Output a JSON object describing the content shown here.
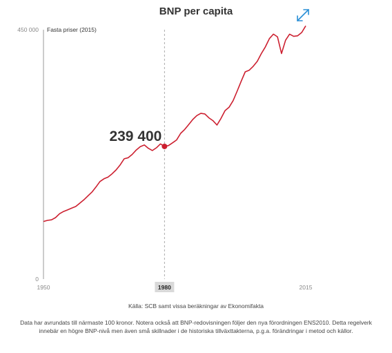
{
  "header": {
    "title": "BNP per capita",
    "expand_icon": "expand-arrows-icon"
  },
  "colors": {
    "line": "#cc1f2f",
    "axis": "#999999",
    "highlight_bg": "#d9d9d9",
    "expand_icon": "#2a8fd6"
  },
  "chart_data": {
    "type": "line",
    "title": "BNP per capita",
    "subtitle": "Fasta priser (2015)",
    "xlabel": "",
    "ylabel": "",
    "xlim": [
      1950,
      2015
    ],
    "ylim": [
      0,
      450000
    ],
    "y_tick_labels": [
      "0",
      "450 000"
    ],
    "y_ticks": [
      0,
      450000
    ],
    "x_tick_labels": [
      "1950",
      "1980",
      "2015"
    ],
    "x_ticks": [
      1950,
      1980,
      2015
    ],
    "grid": false,
    "highlight": {
      "x": 1980,
      "y": 239400,
      "label": "239 400",
      "x_label": "1980"
    },
    "series": [
      {
        "x": [
          1950,
          1951,
          1952,
          1953,
          1954,
          1955,
          1956,
          1957,
          1958,
          1959,
          1960,
          1961,
          1962,
          1963,
          1964,
          1965,
          1966,
          1967,
          1968,
          1969,
          1970,
          1971,
          1972,
          1973,
          1974,
          1975,
          1976,
          1977,
          1978,
          1979,
          1980,
          1981,
          1982,
          1983,
          1984,
          1985,
          1986,
          1987,
          1988,
          1989,
          1990,
          1991,
          1992,
          1993,
          1994,
          1995,
          1996,
          1997,
          1998,
          1999,
          2000,
          2001,
          2002,
          2003,
          2004,
          2005,
          2006,
          2007,
          2008,
          2009,
          2010,
          2011,
          2012,
          2013,
          2014,
          2015
        ],
        "values": [
          104000,
          106000,
          107000,
          111000,
          118000,
          122000,
          125000,
          128000,
          131000,
          137000,
          143000,
          150000,
          157000,
          166000,
          176000,
          181000,
          184000,
          190000,
          197000,
          206000,
          217000,
          219000,
          225000,
          233000,
          239000,
          242000,
          236000,
          232000,
          237000,
          244000,
          239400,
          241000,
          246000,
          251000,
          263000,
          270000,
          279000,
          288000,
          295000,
          299000,
          298000,
          291000,
          286000,
          278000,
          290000,
          304000,
          310000,
          322000,
          339000,
          357000,
          374000,
          377000,
          384000,
          393000,
          407000,
          419000,
          434000,
          442000,
          437000,
          407000,
          431000,
          442000,
          438000,
          439000,
          445000,
          457000
        ]
      }
    ]
  },
  "footer": {
    "source": "Källa: SCB samt vissa beräkningar av Ekonomifakta",
    "note": "Data har avrundats till närmaste 100 kronor. Notera också att BNP-redovisningen följer den nya förordningen ENS2010. Detta regelverk innebär en högre BNP-nivå men även små skillnader i de historiska tillväxttakterna, p.g.a. förändringar i metod och källor."
  }
}
